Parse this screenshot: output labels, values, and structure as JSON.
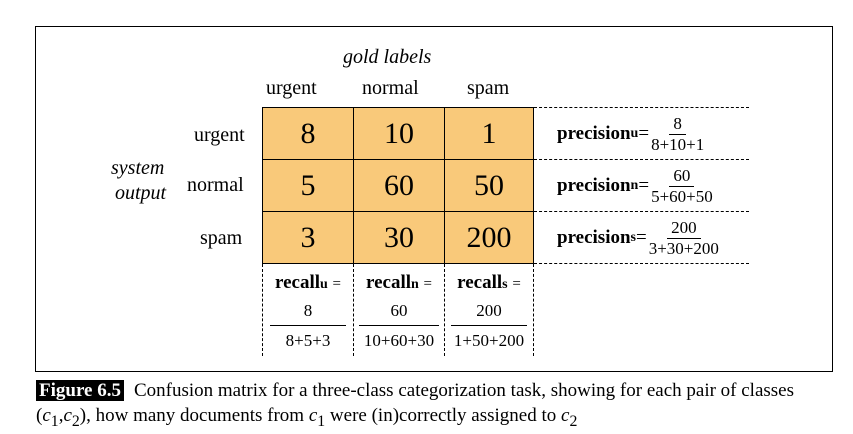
{
  "matrix": {
    "gold_header": "gold labels",
    "system_header_line1": "system",
    "system_header_line2": "output",
    "columns": [
      "urgent",
      "normal",
      "spam"
    ],
    "rows": [
      "urgent",
      "normal",
      "spam"
    ],
    "cells": [
      [
        "8",
        "10",
        "1"
      ],
      [
        "5",
        "60",
        "50"
      ],
      [
        "3",
        "30",
        "200"
      ]
    ],
    "cell_color": "#f9c97a"
  },
  "precision": [
    {
      "label": "precision",
      "sub": "u",
      "eq": "=",
      "num": "8",
      "den": "8+10+1"
    },
    {
      "label": "precision",
      "sub": "n",
      "eq": "=",
      "num": "60",
      "den": "5+60+50"
    },
    {
      "label": "precision",
      "sub": "s",
      "eq": "=",
      "num": "200",
      "den": "3+30+200"
    }
  ],
  "recall": [
    {
      "label": "recall",
      "sub": "u",
      "eq": "=",
      "num": "8",
      "den": "8+5+3"
    },
    {
      "label": "recall",
      "sub": "n",
      "eq": "=",
      "num": "60",
      "den": "10+60+30"
    },
    {
      "label": "recall",
      "sub": "s",
      "eq": "=",
      "num": "200",
      "den": "1+50+200"
    }
  ],
  "caption": {
    "figure_label": "Figure 6.5",
    "text_1": "Confusion matrix for a three-class categorization task, showing for each pair of classes (",
    "c1": "c",
    "c1_sub": "1",
    "comma": ",",
    "c2": "c",
    "c2_sub": "2",
    "text_2": "), how many documents from ",
    "c3": "c",
    "c3_sub": "1",
    "text_3": " were (in)correctly assigned to ",
    "c4": "c",
    "c4_sub": "2"
  }
}
